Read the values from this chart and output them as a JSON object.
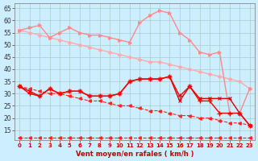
{
  "x": [
    0,
    1,
    2,
    3,
    4,
    5,
    6,
    7,
    8,
    9,
    10,
    11,
    12,
    13,
    14,
    15,
    16,
    17,
    18,
    19,
    20,
    21,
    22,
    23
  ],
  "line_light_pink_diag": [
    56,
    55,
    54,
    53,
    52,
    51,
    50,
    49,
    48,
    47,
    46,
    45,
    44,
    43,
    43,
    42,
    41,
    40,
    39,
    38,
    37,
    36,
    35,
    32
  ],
  "line_med_pink": [
    56,
    57,
    58,
    53,
    55,
    57,
    55,
    54,
    54,
    53,
    52,
    51,
    59,
    62,
    64,
    63,
    55,
    52,
    47,
    46,
    47,
    22,
    22,
    32
  ],
  "line_red_main": [
    33,
    30,
    29,
    32,
    30,
    31,
    31,
    29,
    29,
    29,
    30,
    35,
    36,
    36,
    36,
    37,
    29,
    33,
    27,
    27,
    22,
    22,
    22,
    17
  ],
  "line_dark_red": [
    33,
    31,
    29,
    32,
    30,
    31,
    31,
    29,
    29,
    29,
    30,
    35,
    36,
    36,
    36,
    37,
    27,
    33,
    28,
    28,
    28,
    28,
    22,
    17
  ],
  "line_flat_dashed": [
    12,
    12,
    12,
    12,
    12,
    12,
    12,
    12,
    12,
    12,
    12,
    12,
    12,
    12,
    12,
    12,
    12,
    12,
    12,
    12,
    12,
    12,
    12,
    12
  ],
  "line_diag_dashed": [
    33,
    32,
    31,
    30,
    30,
    29,
    28,
    27,
    27,
    26,
    25,
    25,
    24,
    23,
    23,
    22,
    21,
    21,
    20,
    20,
    19,
    18,
    18,
    17
  ],
  "bg_color": "#cceeff",
  "grid_color": "#aacccc",
  "color_line1": "#ffaaaa",
  "color_line2": "#ff8888",
  "color_line3": "#ff0000",
  "color_line4": "#dd0000",
  "color_dashed": "#ff2222",
  "xlabel": "Vent moyen/en rafales ( km/h )",
  "yticks": [
    15,
    20,
    25,
    30,
    35,
    40,
    45,
    50,
    55,
    60,
    65
  ],
  "xticks": [
    0,
    1,
    2,
    3,
    4,
    5,
    6,
    7,
    8,
    9,
    10,
    11,
    12,
    13,
    14,
    15,
    16,
    17,
    18,
    19,
    20,
    21,
    22,
    23
  ],
  "ylim": [
    11,
    67
  ],
  "xlim": [
    -0.5,
    23.5
  ]
}
